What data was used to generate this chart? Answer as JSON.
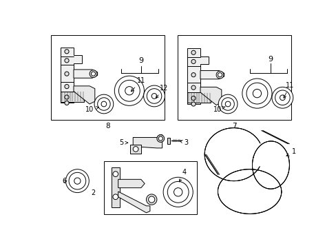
{
  "bg_color": "#ffffff",
  "lc": "#000000",
  "fig_w": 4.89,
  "fig_h": 3.6,
  "dpi": 100,
  "fs": 7.0,
  "lw": 0.7
}
